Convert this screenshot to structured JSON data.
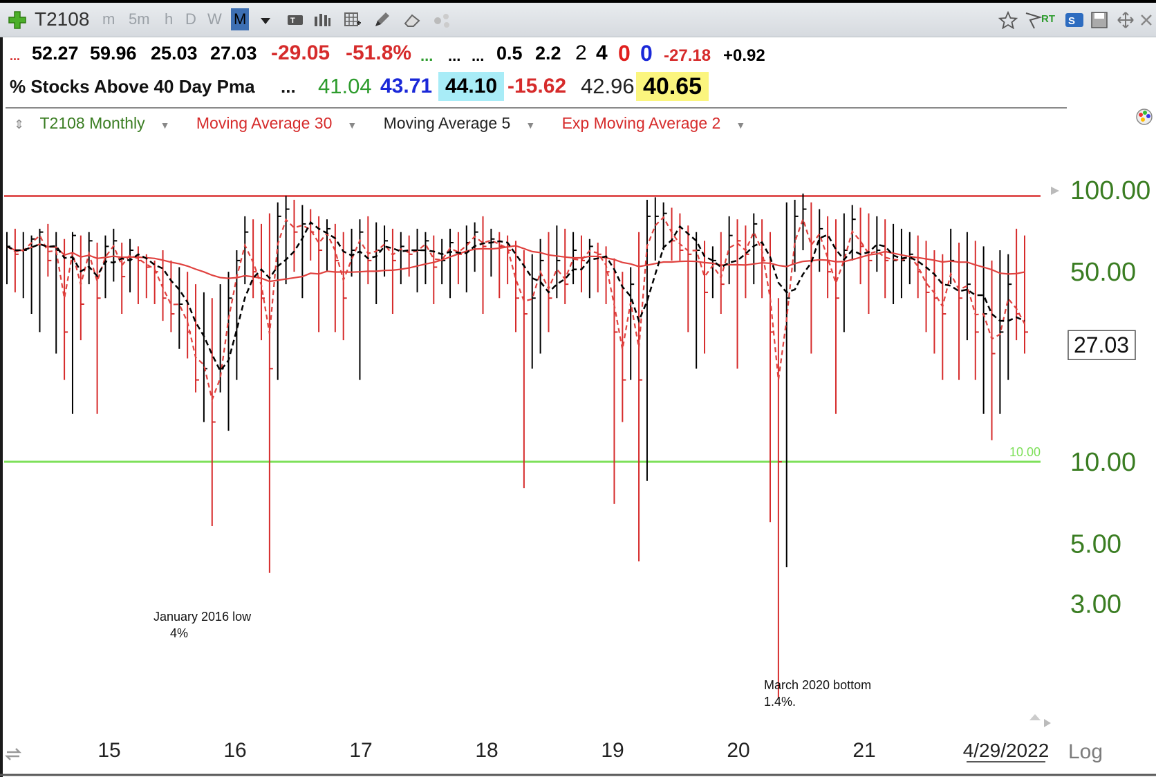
{
  "toolbar": {
    "symbol": "T2108",
    "timeframes": [
      "m",
      "5m",
      "h",
      "D",
      "W",
      "M"
    ],
    "active_timeframe": "M",
    "rt_label": "RT",
    "s_label": "S"
  },
  "quote_row1": {
    "lead": "...",
    "open": "52.27",
    "high": "59.96",
    "low": "25.03",
    "last": "27.03",
    "change": "-29.05",
    "change_pct": "-51.8%",
    "dots_green": "...",
    "dots1": "...",
    "dots2": "...",
    "v1": "0.5",
    "v2": "2.2",
    "v3": "2",
    "v4": "4",
    "v5": "0",
    "v6": "0",
    "v7": "-27.18",
    "v8": "+0.92"
  },
  "quote_row2": {
    "name": "% Stocks Above 40 Day Pma",
    "dots": "...",
    "bid": "41.04",
    "v_blue": "43.71",
    "v_cyan": "44.10",
    "v_red": "-15.62",
    "v_plain": "42.96",
    "v_yellow": "40.65"
  },
  "legend": {
    "main": "T2108 Monthly",
    "ma30": "Moving Average 30",
    "ma5": "Moving Average 5",
    "ema2": "Exp Moving Average 2"
  },
  "colors": {
    "up": "#000000",
    "down": "#d62b2b",
    "ma30": "#e0423f",
    "ma5": "#000000",
    "ema2": "#e0423f",
    "hline_top": "#e05555",
    "hline_10": "#7ee05a",
    "axis_text": "#3a7d22"
  },
  "chart_data": {
    "type": "ohlc",
    "yscale": "log",
    "ylim": [
      1.2,
      130
    ],
    "y_ticks": [
      "100.00",
      "50.00",
      "10.00",
      "5.00",
      "3.00"
    ],
    "y_tick_values": [
      100,
      50,
      10,
      5,
      3
    ],
    "last_price_label": "27.03",
    "last_price": 27.03,
    "x_ticks": [
      "15",
      "16",
      "17",
      "18",
      "19",
      "20",
      "21",
      "4/29/2022"
    ],
    "scale_mode": "Log",
    "horizontal_lines": [
      {
        "value": 95
      },
      {
        "value": 10,
        "label": "10.00"
      }
    ],
    "annotations": [
      {
        "text": "January 2016 low",
        "sub": "4%",
        "value": 4
      },
      {
        "text": "March 2020 bottom",
        "sub": "1.4%.",
        "value": 1.4
      }
    ],
    "series_names": [
      "T2108 Monthly",
      "Moving Average 30",
      "Moving Average 5",
      "Exp Moving Average 2"
    ],
    "bars": [
      {
        "h": 70,
        "l": 45,
        "c": 62
      },
      {
        "h": 72,
        "l": 42,
        "c": 58
      },
      {
        "h": 70,
        "l": 40,
        "c": 60
      },
      {
        "h": 68,
        "l": 35,
        "c": 66
      },
      {
        "h": 72,
        "l": 30,
        "c": 70
      },
      {
        "h": 75,
        "l": 48,
        "c": 55
      },
      {
        "h": 70,
        "l": 25,
        "c": 60
      },
      {
        "h": 66,
        "l": 20,
        "c": 30
      },
      {
        "h": 70,
        "l": 15,
        "c": 68
      },
      {
        "h": 68,
        "l": 28,
        "c": 38
      },
      {
        "h": 70,
        "l": 45,
        "c": 65
      },
      {
        "h": 64,
        "l": 15,
        "c": 40
      },
      {
        "h": 68,
        "l": 40,
        "c": 62
      },
      {
        "h": 72,
        "l": 46,
        "c": 65
      },
      {
        "h": 64,
        "l": 35,
        "c": 48
      },
      {
        "h": 66,
        "l": 42,
        "c": 60
      },
      {
        "h": 62,
        "l": 38,
        "c": 55
      },
      {
        "h": 58,
        "l": 40,
        "c": 52
      },
      {
        "h": 55,
        "l": 38,
        "c": 50
      },
      {
        "h": 60,
        "l": 33,
        "c": 40
      },
      {
        "h": 55,
        "l": 30,
        "c": 35
      },
      {
        "h": 52,
        "l": 26,
        "c": 38
      },
      {
        "h": 50,
        "l": 24,
        "c": 30
      },
      {
        "h": 45,
        "l": 18,
        "c": 20
      },
      {
        "h": 42,
        "l": 14,
        "c": 22
      },
      {
        "h": 40,
        "l": 5.8,
        "c": 14
      },
      {
        "h": 45,
        "l": 18,
        "c": 22
      },
      {
        "h": 50,
        "l": 13,
        "c": 40
      },
      {
        "h": 60,
        "l": 20,
        "c": 55
      },
      {
        "h": 80,
        "l": 45,
        "c": 70
      },
      {
        "h": 78,
        "l": 40,
        "c": 50
      },
      {
        "h": 75,
        "l": 28,
        "c": 40
      },
      {
        "h": 82,
        "l": 3.9,
        "c": 22
      },
      {
        "h": 90,
        "l": 20,
        "c": 80
      },
      {
        "h": 95,
        "l": 45,
        "c": 85
      },
      {
        "h": 92,
        "l": 50,
        "c": 70
      },
      {
        "h": 88,
        "l": 40,
        "c": 75
      },
      {
        "h": 85,
        "l": 55,
        "c": 70
      },
      {
        "h": 80,
        "l": 30,
        "c": 60
      },
      {
        "h": 78,
        "l": 50,
        "c": 72
      },
      {
        "h": 75,
        "l": 30,
        "c": 55
      },
      {
        "h": 70,
        "l": 28,
        "c": 40
      },
      {
        "h": 72,
        "l": 48,
        "c": 60
      },
      {
        "h": 78,
        "l": 20,
        "c": 70
      },
      {
        "h": 80,
        "l": 45,
        "c": 55
      },
      {
        "h": 76,
        "l": 38,
        "c": 60
      },
      {
        "h": 74,
        "l": 48,
        "c": 65
      },
      {
        "h": 72,
        "l": 35,
        "c": 55
      },
      {
        "h": 70,
        "l": 45,
        "c": 62
      },
      {
        "h": 68,
        "l": 48,
        "c": 58
      },
      {
        "h": 72,
        "l": 42,
        "c": 60
      },
      {
        "h": 70,
        "l": 45,
        "c": 65
      },
      {
        "h": 68,
        "l": 38,
        "c": 52
      },
      {
        "h": 66,
        "l": 45,
        "c": 55
      },
      {
        "h": 72,
        "l": 40,
        "c": 64
      },
      {
        "h": 70,
        "l": 45,
        "c": 58
      },
      {
        "h": 74,
        "l": 42,
        "c": 64
      },
      {
        "h": 76,
        "l": 50,
        "c": 70
      },
      {
        "h": 80,
        "l": 35,
        "c": 62
      },
      {
        "h": 72,
        "l": 48,
        "c": 66
      },
      {
        "h": 70,
        "l": 40,
        "c": 62
      },
      {
        "h": 68,
        "l": 45,
        "c": 60
      },
      {
        "h": 65,
        "l": 30,
        "c": 40
      },
      {
        "h": 60,
        "l": 8,
        "c": 35
      },
      {
        "h": 58,
        "l": 22,
        "c": 40
      },
      {
        "h": 66,
        "l": 25,
        "c": 55
      },
      {
        "h": 70,
        "l": 30,
        "c": 40
      },
      {
        "h": 74,
        "l": 40,
        "c": 55
      },
      {
        "h": 72,
        "l": 38,
        "c": 45
      },
      {
        "h": 70,
        "l": 45,
        "c": 60
      },
      {
        "h": 68,
        "l": 42,
        "c": 55
      },
      {
        "h": 66,
        "l": 40,
        "c": 62
      },
      {
        "h": 64,
        "l": 42,
        "c": 58
      },
      {
        "h": 62,
        "l": 38,
        "c": 50
      },
      {
        "h": 56,
        "l": 7,
        "c": 30
      },
      {
        "h": 50,
        "l": 14,
        "c": 20
      },
      {
        "h": 52,
        "l": 20,
        "c": 45
      },
      {
        "h": 70,
        "l": 4.3,
        "c": 20
      },
      {
        "h": 92,
        "l": 8.5,
        "c": 80
      },
      {
        "h": 94,
        "l": 55,
        "c": 80
      },
      {
        "h": 90,
        "l": 60,
        "c": 82
      },
      {
        "h": 86,
        "l": 55,
        "c": 65
      },
      {
        "h": 82,
        "l": 55,
        "c": 60
      },
      {
        "h": 74,
        "l": 30,
        "c": 58
      },
      {
        "h": 70,
        "l": 22,
        "c": 60
      },
      {
        "h": 65,
        "l": 25,
        "c": 42
      },
      {
        "h": 62,
        "l": 40,
        "c": 55
      },
      {
        "h": 70,
        "l": 35,
        "c": 45
      },
      {
        "h": 80,
        "l": 45,
        "c": 68
      },
      {
        "h": 78,
        "l": 22,
        "c": 65
      },
      {
        "h": 74,
        "l": 40,
        "c": 58
      },
      {
        "h": 82,
        "l": 45,
        "c": 75
      },
      {
        "h": 78,
        "l": 40,
        "c": 55
      },
      {
        "h": 70,
        "l": 6,
        "c": 30
      },
      {
        "h": 40,
        "l": 1.35,
        "c": 10
      },
      {
        "h": 90,
        "l": 4.1,
        "c": 40
      },
      {
        "h": 92,
        "l": 50,
        "c": 80
      },
      {
        "h": 97,
        "l": 60,
        "c": 85
      },
      {
        "h": 90,
        "l": 25,
        "c": 55
      },
      {
        "h": 85,
        "l": 50,
        "c": 72
      },
      {
        "h": 80,
        "l": 40,
        "c": 50
      },
      {
        "h": 78,
        "l": 15,
        "c": 40
      },
      {
        "h": 82,
        "l": 30,
        "c": 60
      },
      {
        "h": 88,
        "l": 55,
        "c": 78
      },
      {
        "h": 86,
        "l": 45,
        "c": 62
      },
      {
        "h": 82,
        "l": 35,
        "c": 55
      },
      {
        "h": 80,
        "l": 50,
        "c": 60
      },
      {
        "h": 78,
        "l": 40,
        "c": 55
      },
      {
        "h": 75,
        "l": 38,
        "c": 55
      },
      {
        "h": 72,
        "l": 40,
        "c": 55
      },
      {
        "h": 70,
        "l": 45,
        "c": 58
      },
      {
        "h": 68,
        "l": 40,
        "c": 50
      },
      {
        "h": 65,
        "l": 30,
        "c": 42
      },
      {
        "h": 60,
        "l": 25,
        "c": 40
      },
      {
        "h": 58,
        "l": 20,
        "c": 35
      },
      {
        "h": 72,
        "l": 45,
        "c": 55
      },
      {
        "h": 64,
        "l": 20,
        "c": 40
      },
      {
        "h": 70,
        "l": 28,
        "c": 45
      },
      {
        "h": 65,
        "l": 20,
        "c": 30
      },
      {
        "h": 62,
        "l": 15,
        "c": 35
      },
      {
        "h": 55,
        "l": 12,
        "c": 25
      },
      {
        "h": 60,
        "l": 15,
        "c": 30
      },
      {
        "h": 58,
        "l": 20,
        "c": 45
      },
      {
        "h": 72,
        "l": 28,
        "c": 35
      },
      {
        "h": 68,
        "l": 25,
        "c": 30
      }
    ]
  }
}
